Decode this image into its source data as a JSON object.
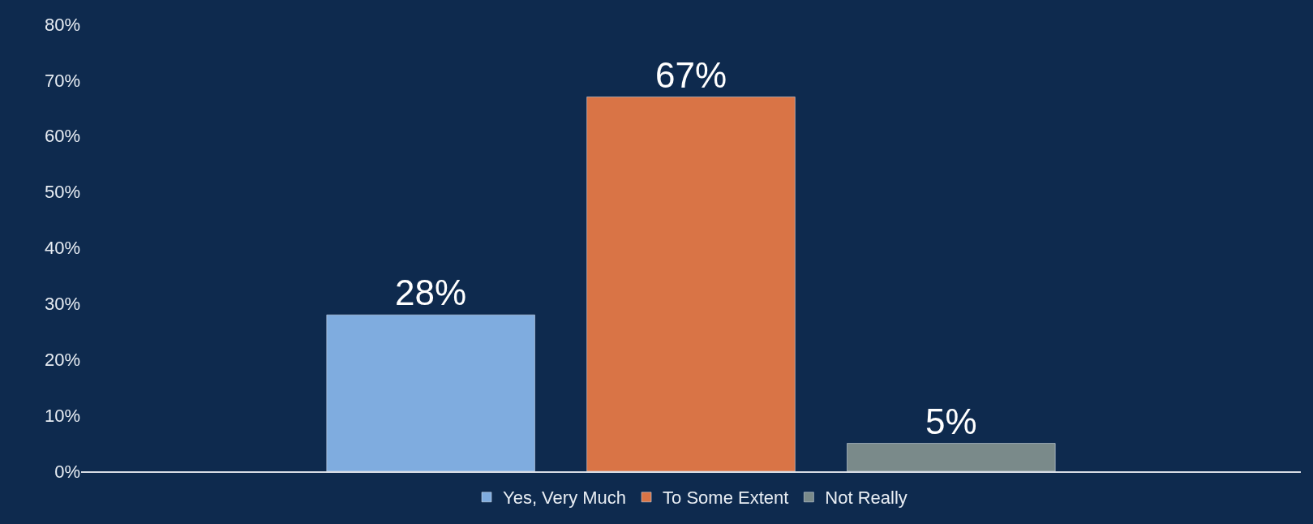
{
  "chart_data": {
    "type": "bar",
    "categories": [
      null
    ],
    "series": [
      {
        "name": "Yes, Very Much",
        "color": "#7facdf",
        "values": [
          28
        ],
        "value_labels": [
          "28%"
        ]
      },
      {
        "name": "To Some Extent",
        "color": "#d97446",
        "values": [
          67
        ],
        "value_labels": [
          "67%"
        ]
      },
      {
        "name": "Not Really",
        "color": "#7a8a8a",
        "values": [
          5
        ],
        "value_labels": [
          "5%"
        ]
      }
    ],
    "ylim": [
      0,
      80
    ],
    "yticks": [
      {
        "value": 0,
        "label": "0%"
      },
      {
        "value": 10,
        "label": "10%"
      },
      {
        "value": 20,
        "label": "20%"
      },
      {
        "value": 30,
        "label": "30%"
      },
      {
        "value": 40,
        "label": "40%"
      },
      {
        "value": 50,
        "label": "50%"
      },
      {
        "value": 60,
        "label": "60%"
      },
      {
        "value": 70,
        "label": "70%"
      },
      {
        "value": 80,
        "label": "80%"
      }
    ],
    "grid": false,
    "legend": "bottom"
  }
}
